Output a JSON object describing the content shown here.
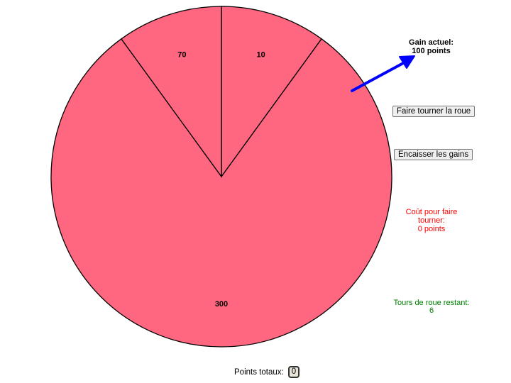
{
  "wheel": {
    "fill_color": "#ff6680",
    "stroke_color": "#000000",
    "segments": [
      {
        "label": "10",
        "start_deg": 0,
        "end_deg": 36
      },
      {
        "label": "300",
        "start_deg": 36,
        "end_deg": 324
      },
      {
        "label": "70",
        "start_deg": 324,
        "end_deg": 360
      }
    ]
  },
  "pointer": {
    "icon": "arrow-icon",
    "color": "#0000ff"
  },
  "current_gain": {
    "label": "Gain actuel:",
    "value": "100 points"
  },
  "buttons": {
    "spin_label": "Faire tourner la roue",
    "cashout_label": "Encaisser les gains"
  },
  "cost": {
    "line1": "Coût pour faire",
    "line2": "tourner:",
    "value": "0 points",
    "color": "#ff0000"
  },
  "turns_left": {
    "label": "Tours de roue restant:",
    "value": "6",
    "color": "#008000"
  },
  "total": {
    "label": "Points totaux:",
    "value": "0"
  }
}
